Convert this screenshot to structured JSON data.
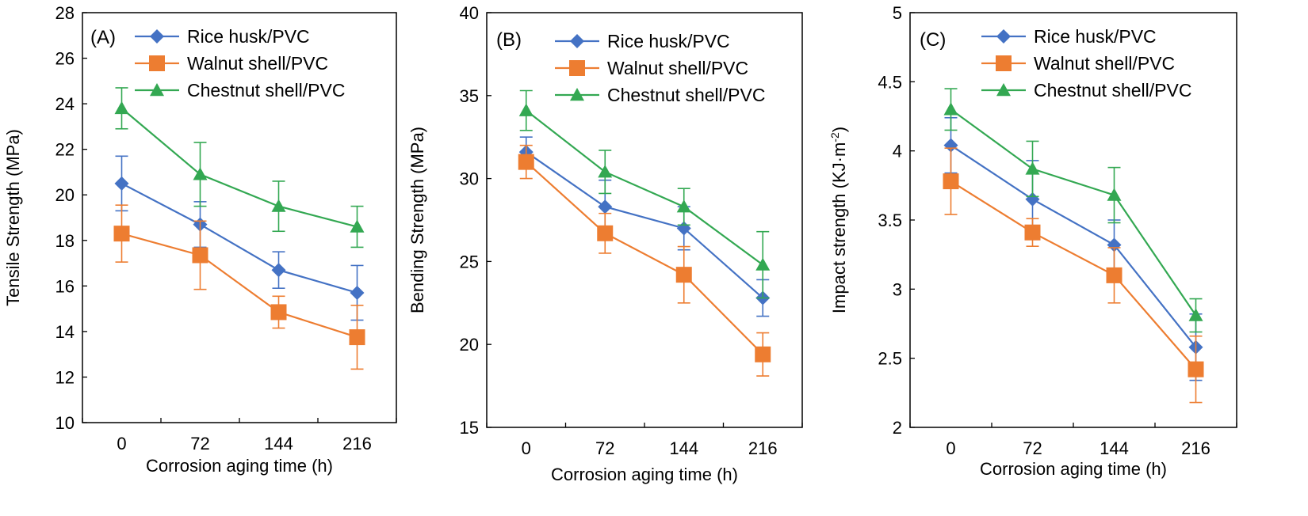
{
  "colors": {
    "rice": "#4472C4",
    "walnut": "#ED7D31",
    "chestnut": "#33A852",
    "axis": "#000000"
  },
  "chart_data": [
    {
      "type": "line",
      "panel_label": "(A)",
      "categories": [
        "0",
        "72",
        "144",
        "216"
      ],
      "xlabel": "Corrosion aging time  (h)",
      "ylabel": "Tensile Strength (MPa)",
      "ylim": [
        10,
        28
      ],
      "yticks": [
        "10",
        "12",
        "14",
        "16",
        "18",
        "20",
        "22",
        "24",
        "26",
        "28"
      ],
      "legend_position": "top-left",
      "series": [
        {
          "name": "Rice husk/PVC",
          "marker": "diamond",
          "values": [
            20.5,
            18.7,
            16.7,
            15.7
          ],
          "errors": [
            1.2,
            1.0,
            0.8,
            1.2
          ]
        },
        {
          "name": "Walnut shell/PVC",
          "marker": "square",
          "values": [
            18.3,
            17.35,
            14.85,
            13.75
          ],
          "errors": [
            1.25,
            1.5,
            0.7,
            1.4
          ]
        },
        {
          "name": "Chestnut shell/PVC",
          "marker": "triangle",
          "values": [
            23.8,
            20.9,
            19.5,
            18.6
          ],
          "errors": [
            0.9,
            1.4,
            1.1,
            0.9
          ]
        }
      ]
    },
    {
      "type": "line",
      "panel_label": "(B)",
      "categories": [
        "0",
        "72",
        "144",
        "216"
      ],
      "xlabel": "Corrosion aging time  (h)",
      "ylabel": "Bending Strength (MPa)",
      "ylim": [
        15,
        40
      ],
      "yticks": [
        "15",
        "20",
        "25",
        "30",
        "35",
        "40"
      ],
      "legend_position": "top-right",
      "series": [
        {
          "name": "Rice husk/PVC",
          "marker": "diamond",
          "values": [
            31.6,
            28.3,
            27.0,
            22.8
          ],
          "errors": [
            0.9,
            1.6,
            1.3,
            1.1
          ]
        },
        {
          "name": "Walnut shell/PVC",
          "marker": "square",
          "values": [
            31.0,
            26.7,
            24.2,
            19.4
          ],
          "errors": [
            1.0,
            1.2,
            1.7,
            1.3
          ]
        },
        {
          "name": "Chestnut shell/PVC",
          "marker": "triangle",
          "values": [
            34.1,
            30.4,
            28.3,
            24.8
          ],
          "errors": [
            1.2,
            1.3,
            1.1,
            2.0
          ]
        }
      ]
    },
    {
      "type": "line",
      "panel_label": "(C)",
      "categories": [
        "0",
        "72",
        "144",
        "216"
      ],
      "xlabel": "Corrosion aging time  (h)",
      "ylabel": "Impact strength (KJ·m",
      "ylabel_sup": "-2",
      "ylabel_end": ")",
      "ylim": [
        2,
        5
      ],
      "yticks": [
        "2",
        "2.5",
        "3",
        "3.5",
        "4",
        "4.5",
        "5"
      ],
      "legend_position": "top-right",
      "series": [
        {
          "name": "Rice husk/PVC",
          "marker": "diamond",
          "values": [
            4.04,
            3.65,
            3.32,
            2.58
          ],
          "errors": [
            0.2,
            0.28,
            0.18,
            0.24
          ]
        },
        {
          "name": "Walnut shell/PVC",
          "marker": "square",
          "values": [
            3.78,
            3.41,
            3.1,
            2.42
          ],
          "errors": [
            0.24,
            0.1,
            0.2,
            0.24
          ]
        },
        {
          "name": "Chestnut shell/PVC",
          "marker": "triangle",
          "values": [
            4.3,
            3.87,
            3.68,
            2.81
          ],
          "errors": [
            0.15,
            0.2,
            0.2,
            0.12
          ]
        }
      ]
    }
  ]
}
